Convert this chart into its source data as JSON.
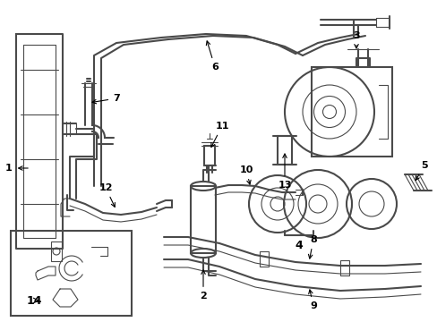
{
  "bg_color": "#ffffff",
  "line_color": "#4a4a4a",
  "lw_thick": 1.5,
  "lw_thin": 0.8,
  "lw_med": 1.1,
  "figsize": [
    4.89,
    3.6
  ],
  "dpi": 100,
  "xmax": 489,
  "ymax": 360
}
